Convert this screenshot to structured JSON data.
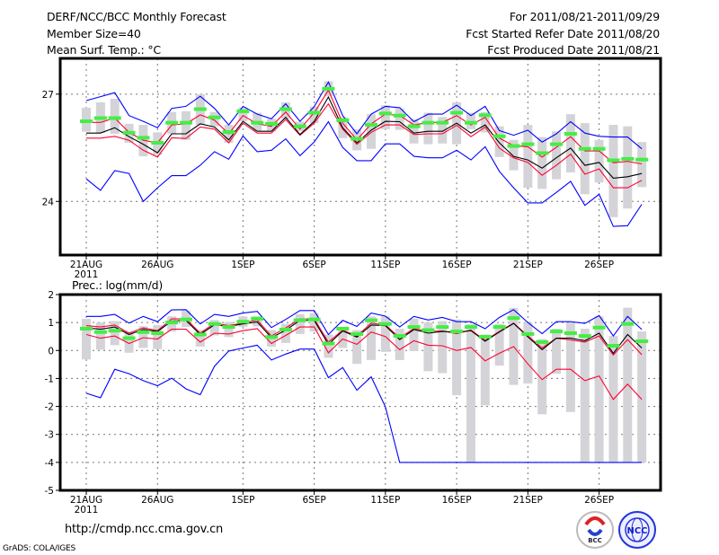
{
  "header": {
    "title": "DERF/NCC/BCC Monthly Forecast",
    "member_size": "Member Size=40",
    "variable": "Mean Surf. Temp.: °C",
    "period": "For 2011/08/21-2011/09/29",
    "started": "Fcst Started Refer Date 2011/08/20",
    "produced": "Fcst Produced Date 2011/08/21"
  },
  "footer": {
    "url": "http://cmdp.ncc.cma.gov.cn",
    "credit": "GrADS: COLA/IGES",
    "logos": [
      "BCC",
      "NCC"
    ]
  },
  "colors": {
    "max_min": "#0000ff",
    "spread": "#ff0033",
    "mean": "#000000",
    "median": "#44ee44",
    "box": "#d4d4d8"
  },
  "chart_data": [
    {
      "type": "line",
      "title": "Mean Surf. Temp.: °C",
      "x_tick_labels": [
        "21AUG",
        "26AUG",
        "1SEP",
        "6SEP",
        "11SEP",
        "16SEP",
        "21SEP",
        "26SEP"
      ],
      "x_tick_days": [
        0,
        5,
        11,
        16,
        21,
        26,
        31,
        36
      ],
      "year_label": "2011",
      "y_tick_labels": [
        "24",
        "27"
      ],
      "y_ticks": [
        24,
        27
      ],
      "ylim": [
        22.5,
        28.0
      ],
      "days": 40,
      "series": [
        {
          "name": "max",
          "color": "#0000ff",
          "values": [
            26.82,
            26.93,
            27.04,
            26.4,
            26.24,
            26.06,
            26.6,
            26.66,
            26.94,
            26.6,
            26.14,
            26.66,
            26.44,
            26.31,
            26.73,
            26.24,
            26.65,
            27.34,
            26.4,
            25.89,
            26.44,
            26.66,
            26.62,
            26.23,
            26.44,
            26.44,
            26.69,
            26.4,
            26.66,
            25.98,
            25.85,
            25.99,
            25.66,
            25.89,
            26.23,
            25.91,
            25.82,
            25.8,
            25.8,
            25.47
          ]
        },
        {
          "name": "min",
          "color": "#0000ff",
          "values": [
            24.63,
            24.31,
            24.86,
            24.78,
            24.0,
            24.38,
            24.72,
            24.72,
            25.01,
            25.39,
            25.18,
            25.83,
            25.39,
            25.43,
            25.75,
            25.28,
            25.66,
            26.23,
            25.51,
            25.14,
            25.14,
            25.61,
            25.61,
            25.26,
            25.22,
            25.22,
            25.43,
            25.16,
            25.53,
            24.84,
            24.38,
            23.96,
            23.96,
            24.25,
            24.56,
            23.89,
            24.2,
            23.3,
            23.32,
            23.92
          ]
        },
        {
          "name": "upper",
          "color": "#ff0033",
          "values": [
            26.21,
            26.21,
            26.33,
            25.93,
            25.71,
            25.64,
            26.14,
            26.17,
            26.42,
            26.27,
            25.89,
            26.4,
            26.17,
            26.1,
            26.5,
            26.02,
            26.48,
            27.11,
            26.19,
            25.72,
            26.17,
            26.44,
            26.4,
            26.14,
            26.21,
            26.21,
            26.4,
            26.14,
            26.35,
            25.77,
            25.56,
            25.53,
            25.24,
            25.51,
            25.81,
            25.41,
            25.41,
            25.08,
            25.12,
            25.05
          ]
        },
        {
          "name": "lower",
          "color": "#ff0033",
          "values": [
            25.77,
            25.77,
            25.82,
            25.71,
            25.43,
            25.24,
            25.78,
            25.76,
            26.08,
            26.02,
            25.64,
            26.19,
            25.91,
            25.91,
            26.29,
            25.85,
            26.19,
            26.73,
            26.02,
            25.6,
            25.93,
            26.14,
            26.14,
            25.87,
            25.89,
            25.89,
            26.13,
            25.81,
            26.08,
            25.49,
            25.22,
            25.09,
            24.73,
            25.01,
            25.32,
            24.76,
            24.91,
            24.38,
            24.38,
            24.59
          ]
        },
        {
          "name": "mean",
          "color": "#000000",
          "values": [
            25.91,
            25.91,
            26.06,
            25.81,
            25.6,
            25.36,
            25.89,
            25.89,
            26.17,
            26.08,
            25.72,
            26.24,
            25.96,
            25.96,
            26.35,
            25.87,
            26.24,
            26.92,
            26.06,
            25.64,
            25.99,
            26.24,
            26.23,
            25.91,
            25.96,
            25.96,
            26.19,
            25.91,
            26.14,
            25.64,
            25.26,
            25.16,
            24.93,
            25.22,
            25.49,
            25.01,
            25.09,
            24.65,
            24.69,
            24.78
          ]
        },
        {
          "name": "median",
          "color": "#44ee44",
          "values": [
            26.24,
            26.33,
            26.33,
            25.92,
            25.78,
            25.64,
            26.2,
            26.2,
            26.58,
            26.35,
            25.94,
            26.52,
            26.2,
            26.17,
            26.58,
            26.1,
            26.48,
            27.15,
            26.27,
            25.75,
            26.14,
            26.46,
            26.4,
            26.1,
            26.2,
            26.2,
            26.48,
            26.2,
            26.41,
            25.82,
            25.55,
            25.6,
            25.35,
            25.6,
            25.89,
            25.47,
            25.47,
            25.15,
            25.19,
            25.17
          ]
        }
      ],
      "boxes": {
        "high": [
          26.62,
          26.77,
          26.87,
          26.17,
          26.14,
          25.93,
          26.5,
          26.52,
          27.0,
          26.5,
          26.14,
          26.63,
          26.48,
          26.31,
          26.77,
          26.23,
          26.65,
          27.36,
          26.35,
          26.02,
          26.44,
          26.69,
          26.6,
          26.3,
          26.48,
          26.36,
          26.77,
          26.48,
          26.5,
          26.1,
          25.72,
          26.14,
          25.8,
          25.96,
          26.44,
          26.19,
          25.72,
          26.14,
          26.1,
          25.66
        ],
        "low": [
          25.95,
          25.91,
          25.89,
          25.64,
          25.26,
          25.3,
          25.89,
          25.72,
          26.14,
          26.1,
          25.64,
          26.24,
          25.96,
          25.96,
          26.31,
          25.96,
          26.19,
          26.94,
          25.77,
          25.43,
          25.47,
          26.02,
          26.0,
          25.62,
          25.6,
          25.62,
          25.6,
          26.02,
          25.93,
          25.24,
          24.87,
          24.38,
          24.35,
          24.62,
          24.81,
          24.2,
          24.53,
          23.56,
          23.8,
          24.4
        ]
      }
    },
    {
      "type": "line",
      "title": "Prec.: log(mm/d)",
      "x_tick_labels": [
        "21AUG",
        "26AUG",
        "1SEP",
        "6SEP",
        "11SEP",
        "16SEP",
        "21SEP",
        "26SEP"
      ],
      "x_tick_days": [
        0,
        5,
        11,
        16,
        21,
        26,
        31,
        36
      ],
      "year_label": "2011",
      "y_tick_labels": [
        "2",
        "1",
        "0",
        "-1",
        "-2",
        "-3",
        "-4",
        "-5"
      ],
      "y_ticks": [
        2,
        1,
        0,
        -1,
        -2,
        -3,
        -4,
        -5
      ],
      "ylim": [
        -5,
        2
      ],
      "days": 40,
      "series": [
        {
          "name": "max",
          "color": "#0000ff",
          "values": [
            1.22,
            1.22,
            1.29,
            0.98,
            1.22,
            1.03,
            1.45,
            1.46,
            0.95,
            1.29,
            1.22,
            1.34,
            1.4,
            0.82,
            1.11,
            1.43,
            1.43,
            0.57,
            1.08,
            0.86,
            1.34,
            1.23,
            0.84,
            1.22,
            1.09,
            1.18,
            1.03,
            1.03,
            0.78,
            1.18,
            1.46,
            1.0,
            0.6,
            1.03,
            1.03,
            0.97,
            1.25,
            0.52,
            1.22,
            0.75
          ]
        },
        {
          "name": "min",
          "color": "#0000ff",
          "values": [
            -1.53,
            -1.69,
            -0.67,
            -0.83,
            -1.08,
            -1.26,
            -0.99,
            -1.37,
            -1.58,
            -0.56,
            -0.02,
            0.09,
            0.19,
            -0.34,
            -0.13,
            0.05,
            0.05,
            -0.97,
            -0.61,
            -1.42,
            -0.94,
            -2.01,
            -4.0,
            -4.0,
            -4.0,
            -4.0,
            -4.0,
            -4.0,
            -4.0,
            -4.0,
            -4.0,
            -4.0,
            -4.0,
            -4.0,
            -4.0,
            -4.0,
            -4.0,
            -4.0,
            -4.0,
            -4.0
          ]
        },
        {
          "name": "upper",
          "color": "#ff0033",
          "values": [
            0.89,
            0.84,
            0.91,
            0.62,
            0.81,
            0.71,
            1.13,
            1.13,
            0.62,
            0.98,
            0.89,
            0.98,
            1.09,
            0.52,
            0.81,
            1.13,
            1.13,
            0.3,
            0.73,
            0.52,
            0.98,
            0.91,
            0.46,
            0.78,
            0.68,
            0.7,
            0.6,
            0.73,
            0.36,
            0.68,
            0.98,
            0.52,
            0.09,
            0.44,
            0.38,
            0.3,
            0.52,
            -0.16,
            0.39,
            -0.15
          ]
        },
        {
          "name": "lower",
          "color": "#ff0033",
          "values": [
            0.57,
            0.44,
            0.52,
            0.25,
            0.46,
            0.41,
            0.76,
            0.76,
            0.3,
            0.62,
            0.59,
            0.71,
            0.78,
            0.25,
            0.54,
            0.84,
            0.84,
            -0.08,
            0.41,
            0.22,
            0.66,
            0.5,
            0.03,
            0.35,
            0.19,
            0.17,
            0.0,
            0.11,
            -0.37,
            -0.1,
            0.14,
            -0.48,
            -1.04,
            -0.67,
            -0.67,
            -1.08,
            -0.91,
            -1.75,
            -1.2,
            -1.75
          ]
        },
        {
          "name": "mean",
          "color": "#000000",
          "values": [
            0.81,
            0.76,
            0.84,
            0.57,
            0.75,
            0.68,
            1.05,
            1.08,
            0.57,
            0.92,
            0.86,
            0.95,
            1.02,
            0.46,
            0.73,
            1.08,
            1.08,
            0.22,
            0.7,
            0.48,
            0.91,
            0.89,
            0.39,
            0.75,
            0.62,
            0.68,
            0.65,
            0.71,
            0.33,
            0.66,
            0.97,
            0.49,
            0.03,
            0.44,
            0.44,
            0.35,
            0.62,
            -0.1,
            0.57,
            0.09
          ]
        },
        {
          "name": "median",
          "color": "#44ee44",
          "values": [
            0.78,
            0.66,
            0.71,
            0.44,
            0.66,
            0.62,
            1.0,
            1.11,
            0.57,
            0.95,
            0.84,
            1.03,
            1.14,
            0.48,
            0.75,
            1.08,
            1.11,
            0.25,
            0.78,
            0.59,
            1.08,
            0.95,
            0.52,
            0.84,
            0.73,
            0.84,
            0.68,
            0.84,
            0.49,
            0.84,
            1.16,
            0.59,
            0.3,
            0.68,
            0.62,
            0.52,
            0.82,
            0.17,
            0.95,
            0.33
          ]
        }
      ],
      "boxes": {
        "high": [
          1.13,
          1.0,
          1.05,
          0.68,
          0.87,
          0.91,
          1.22,
          1.43,
          0.73,
          1.09,
          1.02,
          1.22,
          1.22,
          0.73,
          0.95,
          1.3,
          1.34,
          0.57,
          0.84,
          0.73,
          1.22,
          1.22,
          0.78,
          1.14,
          1.0,
          1.05,
          1.11,
          0.95,
          0.57,
          0.95,
          1.52,
          1.0,
          0.41,
          0.78,
          1.0,
          0.78,
          1.22,
          0.52,
          1.53,
          0.68
        ],
        "low": [
          -0.32,
          0.03,
          0.19,
          -0.08,
          0.09,
          0.05,
          0.68,
          0.84,
          0.14,
          0.54,
          0.48,
          0.84,
          0.86,
          0.14,
          0.27,
          0.59,
          0.68,
          -0.26,
          0.09,
          -0.48,
          -0.34,
          -0.05,
          -0.34,
          -0.02,
          -0.74,
          -0.81,
          -1.6,
          -4.0,
          -1.96,
          -0.54,
          -1.23,
          -1.18,
          -2.28,
          -0.83,
          -2.2,
          -4.0,
          -4.0,
          -4.0,
          -4.0,
          -4.0
        ]
      }
    }
  ]
}
